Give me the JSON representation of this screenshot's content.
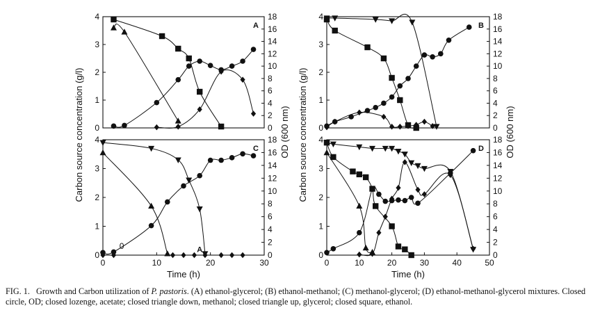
{
  "figure": {
    "caption": {
      "label": "FIG. 1.",
      "text_before": "Growth and Carbon utilization of ",
      "organism": "P. pastoris",
      "text_after": ". (A) ethanol-glycerol; (B) ethanol-methanol; (C) methanol-glycerol; (D) ethanol-methanol-glycerol mixtures. Closed circle, OD; closed lozenge, acetate; closed triangle down, methanol; closed triangle up, glycerol; closed square, ethanol."
    }
  },
  "chart_data": [
    {
      "panel": "A",
      "type": "line",
      "xlim": [
        0,
        30
      ],
      "ylim_left": [
        0,
        4
      ],
      "ylim_right": [
        0,
        18
      ],
      "xticks": [],
      "left_ticks": [
        "0",
        "1",
        "2",
        "3",
        "4"
      ],
      "right_ticks": [
        "0",
        "2",
        "4",
        "6",
        "8",
        "10",
        "12",
        "14",
        "16",
        "18"
      ],
      "ylabel_left": "",
      "ylabel_right": "",
      "xlabel": "",
      "series": [
        {
          "marker": "square",
          "axis": "left",
          "points": [
            [
              2,
              3.9
            ],
            [
              11,
              3.3
            ],
            [
              14,
              2.85
            ],
            [
              16,
              2.5
            ],
            [
              18,
              1.3
            ],
            [
              22,
              0.05
            ]
          ]
        },
        {
          "marker": "triangle-up",
          "axis": "left",
          "points": [
            [
              2,
              3.6
            ],
            [
              4,
              3.45
            ],
            [
              14,
              0.25
            ]
          ]
        },
        {
          "marker": "circle",
          "axis": "right",
          "points": [
            [
              2,
              0.3
            ],
            [
              4,
              0.4
            ],
            [
              10,
              4.1
            ],
            [
              14,
              7.8
            ],
            [
              16,
              10.0
            ],
            [
              18,
              10.8
            ],
            [
              20,
              10.1
            ],
            [
              22,
              9.4
            ],
            [
              24,
              10.0
            ],
            [
              26,
              10.8
            ],
            [
              28,
              12.7
            ]
          ]
        },
        {
          "marker": "diamond",
          "axis": "right",
          "points": [
            [
              10,
              0.1
            ],
            [
              14,
              0.2
            ],
            [
              18,
              3.0
            ],
            [
              22,
              9.1
            ],
            [
              26,
              7.8
            ],
            [
              28,
              2.3
            ]
          ]
        }
      ]
    },
    {
      "panel": "B",
      "type": "line",
      "xlim": [
        0,
        40
      ],
      "ylim_left": [
        0,
        4
      ],
      "ylim_right": [
        0,
        18
      ],
      "xticks": [],
      "left_ticks": [
        "0",
        "1",
        "2",
        "3",
        "4"
      ],
      "right_ticks": [
        "0",
        "2",
        "4",
        "6",
        "8",
        "10",
        "12",
        "14",
        "16",
        "18"
      ],
      "ylabel_left": "",
      "ylabel_right": "",
      "xlabel": "",
      "series": [
        {
          "marker": "triangle-down",
          "axis": "left",
          "points": [
            [
              0,
              3.95
            ],
            [
              2,
              3.95
            ],
            [
              12,
              3.9
            ],
            [
              16,
              3.85
            ],
            [
              21,
              3.8
            ],
            [
              27,
              0.05
            ]
          ]
        },
        {
          "marker": "square",
          "axis": "left",
          "points": [
            [
              0,
              3.9
            ],
            [
              2,
              3.5
            ],
            [
              10,
              2.9
            ],
            [
              14,
              2.5
            ],
            [
              16,
              1.8
            ],
            [
              18,
              1.0
            ],
            [
              20,
              0.1
            ],
            [
              22,
              0.0
            ]
          ]
        },
        {
          "marker": "circle",
          "axis": "right",
          "points": [
            [
              0,
              0.3
            ],
            [
              2,
              1.0
            ],
            [
              6,
              1.8
            ],
            [
              10,
              2.8
            ],
            [
              12,
              3.3
            ],
            [
              14,
              4.0
            ],
            [
              16,
              5.0
            ],
            [
              18,
              6.8
            ],
            [
              20,
              8.0
            ],
            [
              22,
              10.0
            ],
            [
              24,
              11.8
            ],
            [
              26,
              11.5
            ],
            [
              28,
              12.0
            ],
            [
              30,
              14.2
            ],
            [
              35,
              16.3
            ]
          ]
        },
        {
          "marker": "diamond",
          "axis": "right",
          "points": [
            [
              0,
              0.1
            ],
            [
              2,
              1.0
            ],
            [
              8,
              2.5
            ],
            [
              14,
              1.8
            ],
            [
              16,
              0.2
            ],
            [
              18,
              0.2
            ],
            [
              20,
              0.3
            ],
            [
              22,
              0.5
            ],
            [
              24,
              1.0
            ],
            [
              26,
              0.3
            ]
          ]
        }
      ]
    },
    {
      "panel": "C",
      "type": "line",
      "xlim": [
        0,
        30
      ],
      "ylim_left": [
        0,
        4
      ],
      "ylim_right": [
        0,
        18
      ],
      "xticks": [
        "0",
        "10",
        "20",
        "30"
      ],
      "left_ticks": [
        "0",
        "1",
        "2",
        "3",
        "4"
      ],
      "right_ticks": [
        "0",
        "2",
        "4",
        "6",
        "8",
        "10",
        "12",
        "14",
        "16",
        "18"
      ],
      "ylabel_left": "Carbon source concentration (g/l)",
      "ylabel_right": "OD (600 nm)",
      "xlabel": "Time (h)",
      "series": [
        {
          "marker": "triangle-down",
          "axis": "left",
          "points": [
            [
              0,
              3.9
            ],
            [
              9,
              3.7
            ],
            [
              14,
              3.3
            ],
            [
              16,
              2.6
            ],
            [
              18,
              1.6
            ],
            [
              19,
              0.05
            ]
          ]
        },
        {
          "marker": "triangle-up",
          "axis": "left",
          "points": [
            [
              0,
              3.55
            ],
            [
              9,
              1.7
            ],
            [
              12,
              0.05
            ]
          ]
        },
        {
          "marker": "circle",
          "axis": "right",
          "points": [
            [
              0,
              0.4
            ],
            [
              2,
              0.5
            ],
            [
              9,
              4.6
            ],
            [
              12,
              8.3
            ],
            [
              15,
              10.8
            ],
            [
              18,
              12.4
            ],
            [
              20,
              14.8
            ],
            [
              22,
              14.8
            ],
            [
              24,
              15.2
            ],
            [
              26,
              15.8
            ],
            [
              28,
              15.5
            ]
          ]
        },
        {
          "marker": "diamond",
          "axis": "right",
          "points": [
            [
              0,
              0.0
            ],
            [
              2,
              0.0
            ],
            [
              13,
              0.0
            ],
            [
              15,
              0.0
            ],
            [
              17,
              0.0
            ],
            [
              19,
              0.0
            ],
            [
              22,
              0.0
            ],
            [
              24,
              0.0
            ],
            [
              26,
              0.0
            ]
          ]
        }
      ],
      "annotations": [
        "0",
        "A"
      ]
    },
    {
      "panel": "D",
      "type": "line",
      "xlim": [
        0,
        50
      ],
      "ylim_left": [
        0,
        4
      ],
      "ylim_right": [
        0,
        18
      ],
      "xticks": [
        "0",
        "10",
        "20",
        "30",
        "40",
        "50"
      ],
      "left_ticks": [
        "0",
        "1",
        "2",
        "3",
        "4"
      ],
      "right_ticks": [
        "0",
        "2",
        "4",
        "6",
        "8",
        "10",
        "12",
        "14",
        "16",
        "18"
      ],
      "ylabel_left": "Carbon source concentration (g/l)",
      "ylabel_right": "OD (600 nm)",
      "xlabel": "Time (h)",
      "series": [
        {
          "marker": "triangle-down",
          "axis": "left",
          "points": [
            [
              0,
              3.9
            ],
            [
              2,
              3.85
            ],
            [
              10,
              3.75
            ],
            [
              14,
              3.7
            ],
            [
              18,
              3.7
            ],
            [
              20,
              3.7
            ],
            [
              22,
              3.6
            ],
            [
              24,
              3.5
            ],
            [
              26,
              3.2
            ],
            [
              28,
              3.1
            ],
            [
              30,
              3.0
            ],
            [
              38,
              2.9
            ],
            [
              45,
              0.2
            ]
          ]
        },
        {
          "marker": "square",
          "axis": "left",
          "points": [
            [
              0,
              3.9
            ],
            [
              2,
              3.4
            ],
            [
              8,
              2.9
            ],
            [
              10,
              2.8
            ],
            [
              12,
              2.7
            ],
            [
              14,
              2.3
            ],
            [
              15,
              1.7
            ],
            [
              20,
              1.0
            ],
            [
              22,
              0.3
            ],
            [
              24,
              0.2
            ],
            [
              26,
              0.0
            ]
          ]
        },
        {
          "marker": "triangle-up",
          "axis": "left",
          "points": [
            [
              0,
              3.55
            ],
            [
              10,
              1.7
            ],
            [
              12,
              0.25
            ],
            [
              14,
              0.1
            ]
          ]
        },
        {
          "marker": "circle",
          "axis": "right",
          "points": [
            [
              0,
              0.4
            ],
            [
              2,
              1.0
            ],
            [
              10,
              3.5
            ],
            [
              14,
              10.3
            ],
            [
              16,
              9.5
            ],
            [
              18,
              8.4
            ],
            [
              20,
              8.5
            ],
            [
              22,
              8.6
            ],
            [
              24,
              8.5
            ],
            [
              26,
              9.0
            ],
            [
              28,
              8.1
            ],
            [
              38,
              12.8
            ],
            [
              45,
              16.3
            ]
          ]
        },
        {
          "marker": "diamond",
          "axis": "right",
          "points": [
            [
              10,
              0.1
            ],
            [
              14,
              0.2
            ],
            [
              16,
              3.5
            ],
            [
              18,
              6.0
            ],
            [
              20,
              8.8
            ],
            [
              22,
              10.5
            ],
            [
              24,
              14.5
            ],
            [
              28,
              10.2
            ],
            [
              30,
              9.5
            ],
            [
              38,
              12.5
            ],
            [
              45,
              1.0
            ]
          ]
        }
      ]
    }
  ]
}
